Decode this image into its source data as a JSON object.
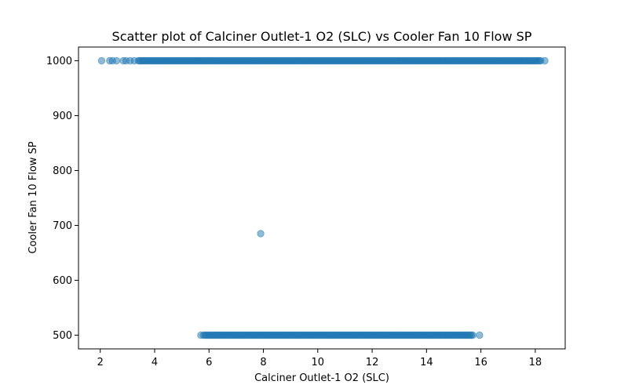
{
  "chart_data": {
    "type": "scatter",
    "title": "Scatter plot of Calciner Outlet-1 O2 (SLC) vs Cooler Fan 10 Flow SP",
    "xlabel": "Calciner Outlet-1 O2 (SLC)",
    "ylabel": "Cooler Fan 10 Flow SP",
    "xlim": [
      1.2,
      19.1
    ],
    "ylim": [
      475,
      1025
    ],
    "xticks": [
      2,
      4,
      6,
      8,
      10,
      12,
      14,
      16,
      18
    ],
    "yticks": [
      500,
      600,
      700,
      800,
      900,
      1000
    ],
    "grid": false,
    "legend": "none",
    "marker_color": "#1f77b4",
    "marker_alpha": 0.5,
    "series": [
      {
        "clusters": [
          {
            "y": 1000,
            "x_min": 3.4,
            "x_max": 18.2,
            "step": 0.05
          },
          {
            "y": 500,
            "x_min": 5.8,
            "x_max": 15.7,
            "step": 0.05
          }
        ],
        "points": [
          {
            "x": 2.05,
            "y": 1000
          },
          {
            "x": 2.35,
            "y": 1000
          },
          {
            "x": 2.45,
            "y": 1000
          },
          {
            "x": 2.6,
            "y": 1000
          },
          {
            "x": 2.85,
            "y": 1000
          },
          {
            "x": 2.95,
            "y": 1000
          },
          {
            "x": 3.1,
            "y": 1000
          },
          {
            "x": 3.25,
            "y": 1000
          },
          {
            "x": 18.35,
            "y": 1000
          },
          {
            "x": 7.9,
            "y": 685
          },
          {
            "x": 5.7,
            "y": 500
          },
          {
            "x": 15.95,
            "y": 500
          }
        ]
      }
    ]
  }
}
